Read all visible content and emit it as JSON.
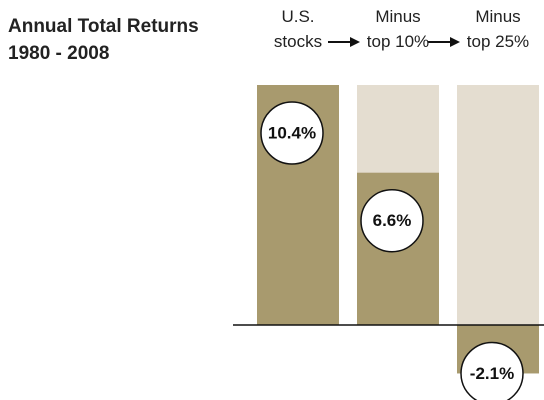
{
  "chart_data": {
    "type": "bar",
    "title": "Annual Total Returns",
    "subtitle": "1980 - 2008",
    "categories": [
      "U.S. stocks",
      "Minus top 10%",
      "Minus top 25%"
    ],
    "values": [
      10.4,
      6.6,
      -2.1
    ],
    "value_labels": [
      "10.4%",
      "6.6%",
      "-2.1%"
    ],
    "color": "#a89a6e",
    "background_color": "#e4ddd0",
    "ylim": [
      -3.25,
      10.4
    ]
  }
}
